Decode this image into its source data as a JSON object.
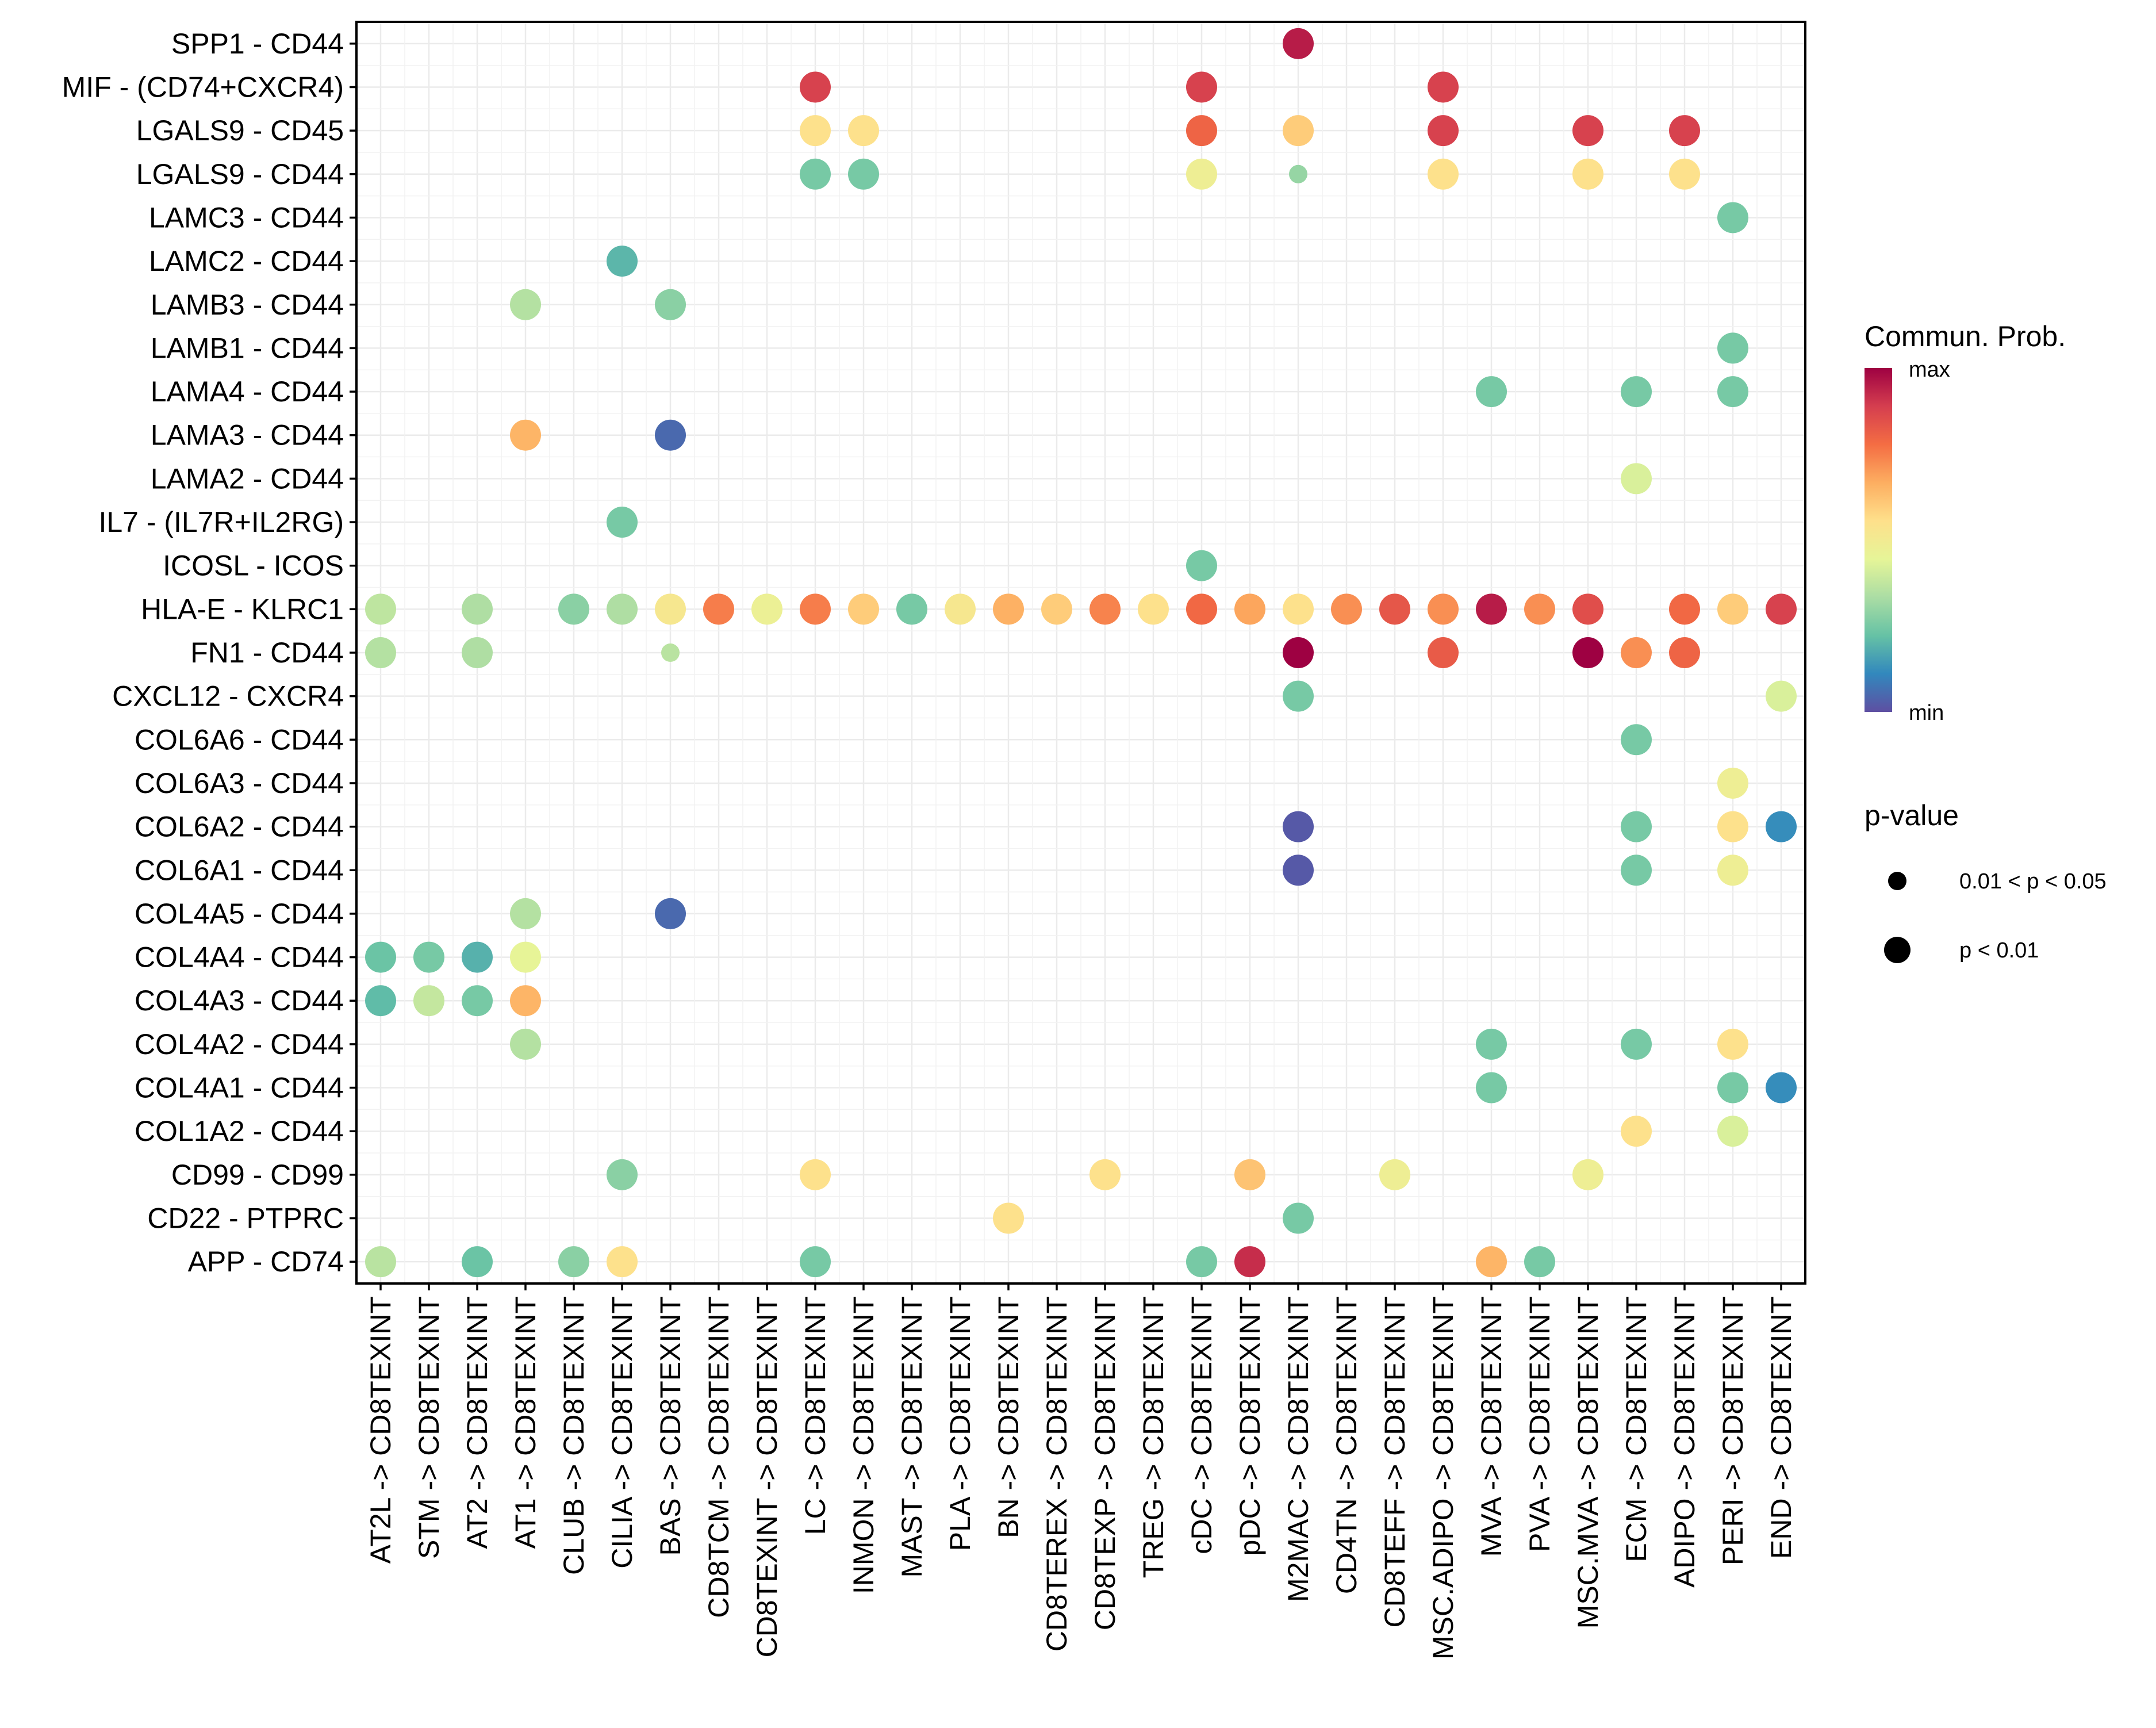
{
  "chart_data": {
    "type": "scatter",
    "subtype": "dot-plot",
    "title": "",
    "xlabel": "",
    "ylabel": "",
    "grid": true,
    "legend_position": "right",
    "x_categories": [
      "AT2L -> CD8TEXINT",
      "STM -> CD8TEXINT",
      "AT2 -> CD8TEXINT",
      "AT1 -> CD8TEXINT",
      "CLUB -> CD8TEXINT",
      "CILIA -> CD8TEXINT",
      "BAS -> CD8TEXINT",
      "CD8TCM -> CD8TEXINT",
      "CD8TEXINT -> CD8TEXINT",
      "LC -> CD8TEXINT",
      "INMON -> CD8TEXINT",
      "MAST -> CD8TEXINT",
      "PLA -> CD8TEXINT",
      "BN -> CD8TEXINT",
      "CD8TEREX -> CD8TEXINT",
      "CD8TEXP -> CD8TEXINT",
      "TREG -> CD8TEXINT",
      "cDC -> CD8TEXINT",
      "pDC -> CD8TEXINT",
      "M2MAC -> CD8TEXINT",
      "CD4TN -> CD8TEXINT",
      "CD8TEFF -> CD8TEXINT",
      "MSC.ADIPO -> CD8TEXINT",
      "MVA -> CD8TEXINT",
      "PVA -> CD8TEXINT",
      "MSC.MVA -> CD8TEXINT",
      "ECM -> CD8TEXINT",
      "ADIPO -> CD8TEXINT",
      "PERI -> CD8TEXINT",
      "END -> CD8TEXINT"
    ],
    "y_categories": [
      "SPP1 - CD44",
      "MIF - (CD74+CXCR4)",
      "LGALS9 - CD45",
      "LGALS9 - CD44",
      "LAMC3 - CD44",
      "LAMC2 - CD44",
      "LAMB3 - CD44",
      "LAMB1 - CD44",
      "LAMA4 - CD44",
      "LAMA3 - CD44",
      "LAMA2 - CD44",
      "IL7 - (IL7R+IL2RG)",
      "ICOSL - ICOS",
      "HLA-E - KLRC1",
      "FN1 - CD44",
      "CXCL12 - CXCR4",
      "COL6A6 - CD44",
      "COL6A3 - CD44",
      "COL6A2 - CD44",
      "COL6A1 - CD44",
      "COL4A5 - CD44",
      "COL4A4 - CD44",
      "COL4A3 - CD44",
      "COL4A2 - CD44",
      "COL4A1 - CD44",
      "COL1A2 - CD44",
      "CD99 - CD99",
      "CD22 - PTPRC",
      "APP - CD74"
    ],
    "color_scale": {
      "title": "Commun. Prob.",
      "max_label": "max",
      "min_label": "min",
      "palette": "Spectral",
      "stops": [
        "#5e4fa2",
        "#3288bd",
        "#66c2a5",
        "#abdda4",
        "#e6f598",
        "#fee08b",
        "#fdae61",
        "#f46d43",
        "#d53e4f",
        "#9e0142"
      ]
    },
    "size_legend": {
      "title": "p-value",
      "items": [
        {
          "label": "0.01 < p < 0.05",
          "level": "small"
        },
        {
          "label": "p < 0.01",
          "level": "large"
        }
      ]
    },
    "points": [
      {
        "x": "M2MAC -> CD8TEXINT",
        "y": "SPP1 - CD44",
        "prob": 0.95,
        "p": "p < 0.01"
      },
      {
        "x": "LC -> CD8TEXINT",
        "y": "MIF - (CD74+CXCR4)",
        "prob": 0.88,
        "p": "p < 0.01"
      },
      {
        "x": "cDC -> CD8TEXINT",
        "y": "MIF - (CD74+CXCR4)",
        "prob": 0.88,
        "p": "p < 0.01"
      },
      {
        "x": "MSC.ADIPO -> CD8TEXINT",
        "y": "MIF - (CD74+CXCR4)",
        "prob": 0.88,
        "p": "p < 0.01"
      },
      {
        "x": "LC -> CD8TEXINT",
        "y": "LGALS9 - CD45",
        "prob": 0.55,
        "p": "p < 0.01"
      },
      {
        "x": "INMON -> CD8TEXINT",
        "y": "LGALS9 - CD45",
        "prob": 0.55,
        "p": "p < 0.01"
      },
      {
        "x": "cDC -> CD8TEXINT",
        "y": "LGALS9 - CD45",
        "prob": 0.8,
        "p": "p < 0.01"
      },
      {
        "x": "M2MAC -> CD8TEXINT",
        "y": "LGALS9 - CD45",
        "prob": 0.6,
        "p": "p < 0.01"
      },
      {
        "x": "MSC.ADIPO -> CD8TEXINT",
        "y": "LGALS9 - CD45",
        "prob": 0.88,
        "p": "p < 0.01"
      },
      {
        "x": "MSC.MVA -> CD8TEXINT",
        "y": "LGALS9 - CD45",
        "prob": 0.88,
        "p": "p < 0.01"
      },
      {
        "x": "ADIPO -> CD8TEXINT",
        "y": "LGALS9 - CD45",
        "prob": 0.88,
        "p": "p < 0.01"
      },
      {
        "x": "LC -> CD8TEXINT",
        "y": "LGALS9 - CD44",
        "prob": 0.25,
        "p": "p < 0.01"
      },
      {
        "x": "INMON -> CD8TEXINT",
        "y": "LGALS9 - CD44",
        "prob": 0.25,
        "p": "p < 0.01"
      },
      {
        "x": "cDC -> CD8TEXINT",
        "y": "LGALS9 - CD44",
        "prob": 0.48,
        "p": "p < 0.01"
      },
      {
        "x": "M2MAC -> CD8TEXINT",
        "y": "LGALS9 - CD44",
        "prob": 0.3,
        "p": "0.01 < p < 0.05"
      },
      {
        "x": "MSC.ADIPO -> CD8TEXINT",
        "y": "LGALS9 - CD44",
        "prob": 0.55,
        "p": "p < 0.01"
      },
      {
        "x": "MSC.MVA -> CD8TEXINT",
        "y": "LGALS9 - CD44",
        "prob": 0.55,
        "p": "p < 0.01"
      },
      {
        "x": "ADIPO -> CD8TEXINT",
        "y": "LGALS9 - CD44",
        "prob": 0.55,
        "p": "p < 0.01"
      },
      {
        "x": "PERI -> CD8TEXINT",
        "y": "LAMC3 - CD44",
        "prob": 0.25,
        "p": "p < 0.01"
      },
      {
        "x": "CILIA -> CD8TEXINT",
        "y": "LAMC2 - CD44",
        "prob": 0.2,
        "p": "p < 0.01"
      },
      {
        "x": "AT1 -> CD8TEXINT",
        "y": "LAMB3 - CD44",
        "prob": 0.35,
        "p": "p < 0.01"
      },
      {
        "x": "BAS -> CD8TEXINT",
        "y": "LAMB3 - CD44",
        "prob": 0.28,
        "p": "p < 0.01"
      },
      {
        "x": "PERI -> CD8TEXINT",
        "y": "LAMB1 - CD44",
        "prob": 0.25,
        "p": "p < 0.01"
      },
      {
        "x": "MVA -> CD8TEXINT",
        "y": "LAMA4 - CD44",
        "prob": 0.25,
        "p": "p < 0.01"
      },
      {
        "x": "ECM -> CD8TEXINT",
        "y": "LAMA4 - CD44",
        "prob": 0.25,
        "p": "p < 0.01"
      },
      {
        "x": "PERI -> CD8TEXINT",
        "y": "LAMA4 - CD44",
        "prob": 0.25,
        "p": "p < 0.01"
      },
      {
        "x": "AT1 -> CD8TEXINT",
        "y": "LAMA3 - CD44",
        "prob": 0.65,
        "p": "p < 0.01"
      },
      {
        "x": "BAS -> CD8TEXINT",
        "y": "LAMA3 - CD44",
        "prob": 0.05,
        "p": "p < 0.01"
      },
      {
        "x": "ECM -> CD8TEXINT",
        "y": "LAMA2 - CD44",
        "prob": 0.42,
        "p": "p < 0.01"
      },
      {
        "x": "CILIA -> CD8TEXINT",
        "y": "IL7 - (IL7R+IL2RG)",
        "prob": 0.25,
        "p": "p < 0.01"
      },
      {
        "x": "cDC -> CD8TEXINT",
        "y": "ICOSL - ICOS",
        "prob": 0.25,
        "p": "p < 0.01"
      },
      {
        "x": "AT2L -> CD8TEXINT",
        "y": "HLA-E - KLRC1",
        "prob": 0.37,
        "p": "p < 0.01"
      },
      {
        "x": "AT2 -> CD8TEXINT",
        "y": "HLA-E - KLRC1",
        "prob": 0.34,
        "p": "p < 0.01"
      },
      {
        "x": "CLUB -> CD8TEXINT",
        "y": "HLA-E - KLRC1",
        "prob": 0.28,
        "p": "p < 0.01"
      },
      {
        "x": "CILIA -> CD8TEXINT",
        "y": "HLA-E - KLRC1",
        "prob": 0.34,
        "p": "p < 0.01"
      },
      {
        "x": "BAS -> CD8TEXINT",
        "y": "HLA-E - KLRC1",
        "prob": 0.52,
        "p": "p < 0.01"
      },
      {
        "x": "CD8TCM -> CD8TEXINT",
        "y": "HLA-E - KLRC1",
        "prob": 0.75,
        "p": "p < 0.01"
      },
      {
        "x": "CD8TEXINT -> CD8TEXINT",
        "y": "HLA-E - KLRC1",
        "prob": 0.47,
        "p": "p < 0.01"
      },
      {
        "x": "LC -> CD8TEXINT",
        "y": "HLA-E - KLRC1",
        "prob": 0.75,
        "p": "p < 0.01"
      },
      {
        "x": "INMON -> CD8TEXINT",
        "y": "HLA-E - KLRC1",
        "prob": 0.6,
        "p": "p < 0.01"
      },
      {
        "x": "MAST -> CD8TEXINT",
        "y": "HLA-E - KLRC1",
        "prob": 0.25,
        "p": "p < 0.01"
      },
      {
        "x": "PLA -> CD8TEXINT",
        "y": "HLA-E - KLRC1",
        "prob": 0.52,
        "p": "p < 0.01"
      },
      {
        "x": "BN -> CD8TEXINT",
        "y": "HLA-E - KLRC1",
        "prob": 0.66,
        "p": "p < 0.01"
      },
      {
        "x": "CD8TEREX -> CD8TEXINT",
        "y": "HLA-E - KLRC1",
        "prob": 0.6,
        "p": "p < 0.01"
      },
      {
        "x": "CD8TEXP -> CD8TEXINT",
        "y": "HLA-E - KLRC1",
        "prob": 0.74,
        "p": "p < 0.01"
      },
      {
        "x": "TREG -> CD8TEXINT",
        "y": "HLA-E - KLRC1",
        "prob": 0.55,
        "p": "p < 0.01"
      },
      {
        "x": "cDC -> CD8TEXINT",
        "y": "HLA-E - KLRC1",
        "prob": 0.79,
        "p": "p < 0.01"
      },
      {
        "x": "pDC -> CD8TEXINT",
        "y": "HLA-E - KLRC1",
        "prob": 0.68,
        "p": "p < 0.01"
      },
      {
        "x": "M2MAC -> CD8TEXINT",
        "y": "HLA-E - KLRC1",
        "prob": 0.55,
        "p": "p < 0.01"
      },
      {
        "x": "CD4TN -> CD8TEXINT",
        "y": "HLA-E - KLRC1",
        "prob": 0.72,
        "p": "p < 0.01"
      },
      {
        "x": "CD8TEFF -> CD8TEXINT",
        "y": "HLA-E - KLRC1",
        "prob": 0.83,
        "p": "p < 0.01"
      },
      {
        "x": "MSC.ADIPO -> CD8TEXINT",
        "y": "HLA-E - KLRC1",
        "prob": 0.72,
        "p": "p < 0.01"
      },
      {
        "x": "MVA -> CD8TEXINT",
        "y": "HLA-E - KLRC1",
        "prob": 0.95,
        "p": "p < 0.01"
      },
      {
        "x": "PVA -> CD8TEXINT",
        "y": "HLA-E - KLRC1",
        "prob": 0.72,
        "p": "p < 0.01"
      },
      {
        "x": "MSC.MVA -> CD8TEXINT",
        "y": "HLA-E - KLRC1",
        "prob": 0.85,
        "p": "p < 0.01"
      },
      {
        "x": "ADIPO -> CD8TEXINT",
        "y": "HLA-E - KLRC1",
        "prob": 0.79,
        "p": "p < 0.01"
      },
      {
        "x": "PERI -> CD8TEXINT",
        "y": "HLA-E - KLRC1",
        "prob": 0.6,
        "p": "p < 0.01"
      },
      {
        "x": "END -> CD8TEXINT",
        "y": "HLA-E - KLRC1",
        "prob": 0.88,
        "p": "p < 0.01"
      },
      {
        "x": "AT2L -> CD8TEXINT",
        "y": "FN1 - CD44",
        "prob": 0.35,
        "p": "p < 0.01"
      },
      {
        "x": "AT2 -> CD8TEXINT",
        "y": "FN1 - CD44",
        "prob": 0.34,
        "p": "p < 0.01"
      },
      {
        "x": "BAS -> CD8TEXINT",
        "y": "FN1 - CD44",
        "prob": 0.36,
        "p": "0.01 < p < 0.05"
      },
      {
        "x": "M2MAC -> CD8TEXINT",
        "y": "FN1 - CD44",
        "prob": 1.0,
        "p": "p < 0.01"
      },
      {
        "x": "MSC.ADIPO -> CD8TEXINT",
        "y": "FN1 - CD44",
        "prob": 0.82,
        "p": "p < 0.01"
      },
      {
        "x": "MSC.MVA -> CD8TEXINT",
        "y": "FN1 - CD44",
        "prob": 1.0,
        "p": "p < 0.01"
      },
      {
        "x": "ECM -> CD8TEXINT",
        "y": "FN1 - CD44",
        "prob": 0.72,
        "p": "p < 0.01"
      },
      {
        "x": "ADIPO -> CD8TEXINT",
        "y": "FN1 - CD44",
        "prob": 0.8,
        "p": "p < 0.01"
      },
      {
        "x": "M2MAC -> CD8TEXINT",
        "y": "CXCL12 - CXCR4",
        "prob": 0.25,
        "p": "p < 0.01"
      },
      {
        "x": "END -> CD8TEXINT",
        "y": "CXCL12 - CXCR4",
        "prob": 0.42,
        "p": "p < 0.01"
      },
      {
        "x": "ECM -> CD8TEXINT",
        "y": "COL6A6 - CD44",
        "prob": 0.25,
        "p": "p < 0.01"
      },
      {
        "x": "PERI -> CD8TEXINT",
        "y": "COL6A3 - CD44",
        "prob": 0.48,
        "p": "p < 0.01"
      },
      {
        "x": "M2MAC -> CD8TEXINT",
        "y": "COL6A2 - CD44",
        "prob": 0.02,
        "p": "p < 0.01"
      },
      {
        "x": "ECM -> CD8TEXINT",
        "y": "COL6A2 - CD44",
        "prob": 0.25,
        "p": "p < 0.01"
      },
      {
        "x": "PERI -> CD8TEXINT",
        "y": "COL6A2 - CD44",
        "prob": 0.55,
        "p": "p < 0.01"
      },
      {
        "x": "END -> CD8TEXINT",
        "y": "COL6A2 - CD44",
        "prob": 0.12,
        "p": "p < 0.01"
      },
      {
        "x": "M2MAC -> CD8TEXINT",
        "y": "COL6A1 - CD44",
        "prob": 0.02,
        "p": "p < 0.01"
      },
      {
        "x": "ECM -> CD8TEXINT",
        "y": "COL6A1 - CD44",
        "prob": 0.25,
        "p": "p < 0.01"
      },
      {
        "x": "PERI -> CD8TEXINT",
        "y": "COL6A1 - CD44",
        "prob": 0.48,
        "p": "p < 0.01"
      },
      {
        "x": "AT1 -> CD8TEXINT",
        "y": "COL4A5 - CD44",
        "prob": 0.35,
        "p": "p < 0.01"
      },
      {
        "x": "BAS -> CD8TEXINT",
        "y": "COL4A5 - CD44",
        "prob": 0.05,
        "p": "p < 0.01"
      },
      {
        "x": "AT2L -> CD8TEXINT",
        "y": "COL4A4 - CD44",
        "prob": 0.23,
        "p": "p < 0.01"
      },
      {
        "x": "STM -> CD8TEXINT",
        "y": "COL4A4 - CD44",
        "prob": 0.25,
        "p": "p < 0.01"
      },
      {
        "x": "AT2 -> CD8TEXINT",
        "y": "COL4A4 - CD44",
        "prob": 0.19,
        "p": "p < 0.01"
      },
      {
        "x": "AT1 -> CD8TEXINT",
        "y": "COL4A4 - CD44",
        "prob": 0.45,
        "p": "p < 0.01"
      },
      {
        "x": "AT2L -> CD8TEXINT",
        "y": "COL4A3 - CD44",
        "prob": 0.21,
        "p": "p < 0.01"
      },
      {
        "x": "STM -> CD8TEXINT",
        "y": "COL4A3 - CD44",
        "prob": 0.38,
        "p": "p < 0.01"
      },
      {
        "x": "AT2 -> CD8TEXINT",
        "y": "COL4A3 - CD44",
        "prob": 0.25,
        "p": "p < 0.01"
      },
      {
        "x": "AT1 -> CD8TEXINT",
        "y": "COL4A3 - CD44",
        "prob": 0.65,
        "p": "p < 0.01"
      },
      {
        "x": "AT1 -> CD8TEXINT",
        "y": "COL4A2 - CD44",
        "prob": 0.35,
        "p": "p < 0.01"
      },
      {
        "x": "MVA -> CD8TEXINT",
        "y": "COL4A2 - CD44",
        "prob": 0.25,
        "p": "p < 0.01"
      },
      {
        "x": "ECM -> CD8TEXINT",
        "y": "COL4A2 - CD44",
        "prob": 0.25,
        "p": "p < 0.01"
      },
      {
        "x": "PERI -> CD8TEXINT",
        "y": "COL4A2 - CD44",
        "prob": 0.55,
        "p": "p < 0.01"
      },
      {
        "x": "MVA -> CD8TEXINT",
        "y": "COL4A1 - CD44",
        "prob": 0.25,
        "p": "p < 0.01"
      },
      {
        "x": "PERI -> CD8TEXINT",
        "y": "COL4A1 - CD44",
        "prob": 0.25,
        "p": "p < 0.01"
      },
      {
        "x": "END -> CD8TEXINT",
        "y": "COL4A1 - CD44",
        "prob": 0.12,
        "p": "p < 0.01"
      },
      {
        "x": "ECM -> CD8TEXINT",
        "y": "COL1A2 - CD44",
        "prob": 0.55,
        "p": "p < 0.01"
      },
      {
        "x": "PERI -> CD8TEXINT",
        "y": "COL1A2 - CD44",
        "prob": 0.42,
        "p": "p < 0.01"
      },
      {
        "x": "CILIA -> CD8TEXINT",
        "y": "CD99 - CD99",
        "prob": 0.28,
        "p": "p < 0.01"
      },
      {
        "x": "LC -> CD8TEXINT",
        "y": "CD99 - CD99",
        "prob": 0.55,
        "p": "p < 0.01"
      },
      {
        "x": "CD8TEXP -> CD8TEXINT",
        "y": "CD99 - CD99",
        "prob": 0.55,
        "p": "p < 0.01"
      },
      {
        "x": "pDC -> CD8TEXINT",
        "y": "CD99 - CD99",
        "prob": 0.62,
        "p": "p < 0.01"
      },
      {
        "x": "CD8TEFF -> CD8TEXINT",
        "y": "CD99 - CD99",
        "prob": 0.48,
        "p": "p < 0.01"
      },
      {
        "x": "MSC.MVA -> CD8TEXINT",
        "y": "CD99 - CD99",
        "prob": 0.48,
        "p": "p < 0.01"
      },
      {
        "x": "BN -> CD8TEXINT",
        "y": "CD22 - PTPRC",
        "prob": 0.55,
        "p": "p < 0.01"
      },
      {
        "x": "M2MAC -> CD8TEXINT",
        "y": "CD22 - PTPRC",
        "prob": 0.25,
        "p": "p < 0.01"
      },
      {
        "x": "AT2L -> CD8TEXINT",
        "y": "APP - CD74",
        "prob": 0.36,
        "p": "p < 0.01"
      },
      {
        "x": "AT2 -> CD8TEXINT",
        "y": "APP - CD74",
        "prob": 0.23,
        "p": "p < 0.01"
      },
      {
        "x": "CLUB -> CD8TEXINT",
        "y": "APP - CD74",
        "prob": 0.28,
        "p": "p < 0.01"
      },
      {
        "x": "CILIA -> CD8TEXINT",
        "y": "APP - CD74",
        "prob": 0.55,
        "p": "p < 0.01"
      },
      {
        "x": "LC -> CD8TEXINT",
        "y": "APP - CD74",
        "prob": 0.25,
        "p": "p < 0.01"
      },
      {
        "x": "cDC -> CD8TEXINT",
        "y": "APP - CD74",
        "prob": 0.25,
        "p": "p < 0.01"
      },
      {
        "x": "pDC -> CD8TEXINT",
        "y": "APP - CD74",
        "prob": 0.92,
        "p": "p < 0.01"
      },
      {
        "x": "MVA -> CD8TEXINT",
        "y": "APP - CD74",
        "prob": 0.65,
        "p": "p < 0.01"
      },
      {
        "x": "PVA -> CD8TEXINT",
        "y": "APP - CD74",
        "prob": 0.25,
        "p": "p < 0.01"
      }
    ]
  }
}
